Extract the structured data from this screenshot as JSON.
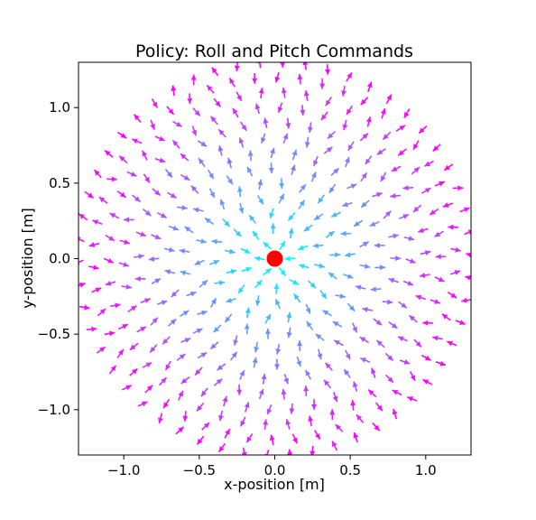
{
  "chart_data": {
    "type": "quiver",
    "title": "Policy: Roll and Pitch Commands",
    "xlabel": "x-position [m]",
    "ylabel": "y-position [m]",
    "xlim": [
      -1.3,
      1.3
    ],
    "ylim": [
      -1.3,
      1.3
    ],
    "xticks": [
      -1.0,
      -0.5,
      0.0,
      0.5,
      1.0
    ],
    "xtick_labels": [
      "−1.0",
      "−0.5",
      "0.0",
      "0.5",
      "1.0"
    ],
    "yticks": [
      -1.0,
      -0.5,
      0.0,
      0.5,
      1.0
    ],
    "ytick_labels": [
      "−1.0",
      "−0.5",
      "0.0",
      "0.5",
      "1.0"
    ],
    "grid": false,
    "colormap": "cool",
    "colormap_stops": [
      "#00ffff",
      "#ff00ff"
    ],
    "vector_field": {
      "description_of_pattern": "arrows arranged on concentric rings around the origin, pointing radially (in or out) with slight tangential jitter; color goes from cyan near center to magenta at the edge",
      "ring_radii": [
        0.1,
        0.2,
        0.3,
        0.4,
        0.5,
        0.6,
        0.7,
        0.8,
        0.9,
        1.0,
        1.1,
        1.2,
        1.3
      ],
      "points_per_ring": [
        6,
        10,
        14,
        18,
        22,
        26,
        30,
        34,
        38,
        42,
        46,
        50,
        54
      ],
      "arrow_length": 0.07
    },
    "target_marker": {
      "x": 0.0,
      "y": 0.0,
      "color": "#ff0000"
    }
  }
}
